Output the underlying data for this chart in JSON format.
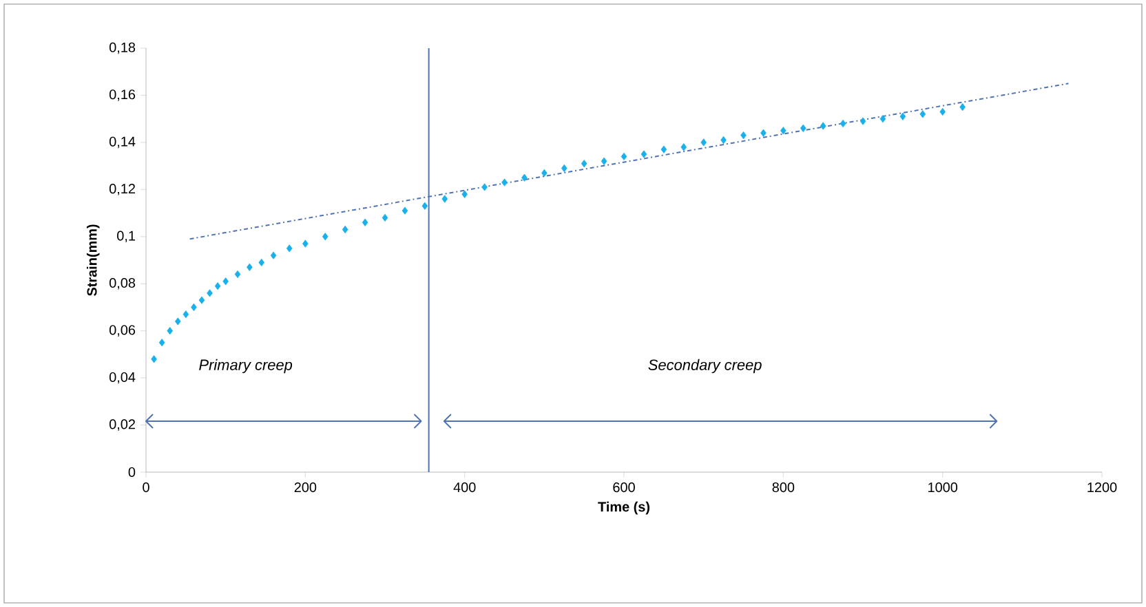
{
  "chart_data": {
    "type": "scatter",
    "xlabel": "Time (s)",
    "ylabel": "Strain(mm)",
    "xlim": [
      0,
      1200
    ],
    "xticks": [
      0,
      200,
      400,
      600,
      800,
      1000,
      1200
    ],
    "ylim": [
      0,
      0.18
    ],
    "yticks": [
      0,
      {
        "value": 0.02,
        "label": "0,02"
      },
      {
        "value": 0.04,
        "label": "0,04"
      },
      {
        "value": 0.06,
        "label": "0,06"
      },
      {
        "value": 0.08,
        "label": "0,08"
      },
      {
        "value": 0.1,
        "label": "0,1"
      },
      {
        "value": 0.12,
        "label": "0,12"
      },
      {
        "value": 0.14,
        "label": "0,14"
      },
      {
        "value": 0.16,
        "label": "0,16"
      },
      {
        "value": 0.18,
        "label": "0,18"
      }
    ],
    "grid": false,
    "series": [
      {
        "color": "#1ab0ea",
        "marker": "diamond",
        "x": [
          10,
          20,
          30,
          40,
          50,
          60,
          70,
          80,
          90,
          100,
          115,
          130,
          145,
          160,
          180,
          200,
          225,
          250,
          275,
          300,
          325,
          350,
          375,
          400,
          425,
          450,
          475,
          500,
          525,
          550,
          575,
          600,
          625,
          650,
          675,
          700,
          725,
          750,
          775,
          800,
          825,
          850,
          875,
          900,
          925,
          950,
          975,
          1000,
          1025
        ],
        "values": [
          0.048,
          0.055,
          0.06,
          0.064,
          0.067,
          0.07,
          0.073,
          0.076,
          0.079,
          0.081,
          0.084,
          0.087,
          0.089,
          0.092,
          0.095,
          0.097,
          0.1,
          0.103,
          0.106,
          0.108,
          0.111,
          0.113,
          0.116,
          0.118,
          0.121,
          0.123,
          0.125,
          0.127,
          0.129,
          0.131,
          0.132,
          0.134,
          0.135,
          0.137,
          0.138,
          0.14,
          0.141,
          0.143,
          0.144,
          0.145,
          0.146,
          0.147,
          0.148,
          0.149,
          0.15,
          0.151,
          0.152,
          0.153,
          0.155
        ]
      },
      {
        "type": "line",
        "line_style": "dashdot",
        "color": "#4f73b5",
        "x": [
          55,
          1158
        ],
        "values": [
          0.099,
          0.165
        ]
      }
    ],
    "ref_lines": [
      {
        "axis": "x",
        "value": 355,
        "color": "#4f73b5"
      }
    ],
    "annotations": [
      "Primary  creep",
      "Secondary creep"
    ]
  }
}
